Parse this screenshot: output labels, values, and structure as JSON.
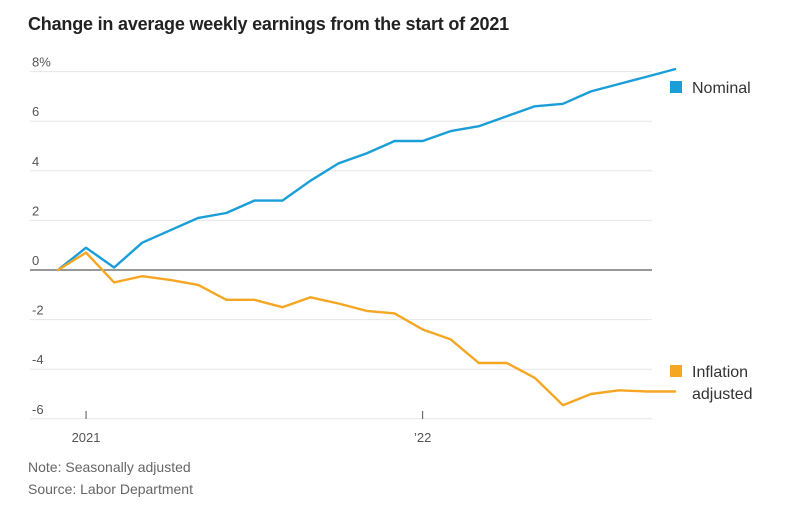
{
  "chart_data": {
    "type": "line",
    "title": "Change in average weekly earnings from the start of 2021",
    "ylim": [
      -6.6,
      8.3
    ],
    "y_ticks": [
      {
        "value": 8,
        "label": "8%"
      },
      {
        "value": 6,
        "label": "6"
      },
      {
        "value": 4,
        "label": "4"
      },
      {
        "value": 2,
        "label": "2"
      },
      {
        "value": 0,
        "label": "0"
      },
      {
        "value": -2,
        "label": "-2"
      },
      {
        "value": -4,
        "label": "-4"
      },
      {
        "value": -6,
        "label": "-6"
      }
    ],
    "x": [
      "2020-12",
      "2021-01",
      "2021-02",
      "2021-03",
      "2021-04",
      "2021-05",
      "2021-06",
      "2021-07",
      "2021-08",
      "2021-09",
      "2021-10",
      "2021-11",
      "2021-12",
      "2022-01",
      "2022-02",
      "2022-03",
      "2022-04",
      "2022-05",
      "2022-06",
      "2022-07",
      "2022-08",
      "2022-09",
      "2022-10"
    ],
    "x_ticks": [
      {
        "value": "2021-01",
        "label": "2021"
      },
      {
        "value": "2022-01",
        "label": "’22"
      }
    ],
    "grid": true,
    "legend_position": "right",
    "series": [
      {
        "name": "Nominal",
        "color": "#1a9ed8",
        "values": [
          0,
          0.9,
          0.1,
          1.1,
          1.6,
          2.1,
          2.3,
          2.8,
          2.8,
          3.6,
          4.3,
          4.7,
          5.2,
          5.2,
          5.6,
          5.8,
          6.2,
          6.6,
          6.7,
          7.2,
          7.5,
          7.8,
          8.1
        ]
      },
      {
        "name": "Inflation adjusted",
        "color": "#f5a623",
        "values": [
          0,
          0.7,
          -0.5,
          -0.25,
          -0.4,
          -0.6,
          -1.2,
          -1.2,
          -1.5,
          -1.1,
          -1.35,
          -1.65,
          -1.75,
          -2.4,
          -2.8,
          -3.75,
          -3.75,
          -4.35,
          -5.45,
          -5.0,
          -4.85,
          -4.9,
          -4.9
        ]
      }
    ]
  },
  "footer": {
    "note": "Note: Seasonally adjusted",
    "source": "Source: Labor Department"
  }
}
